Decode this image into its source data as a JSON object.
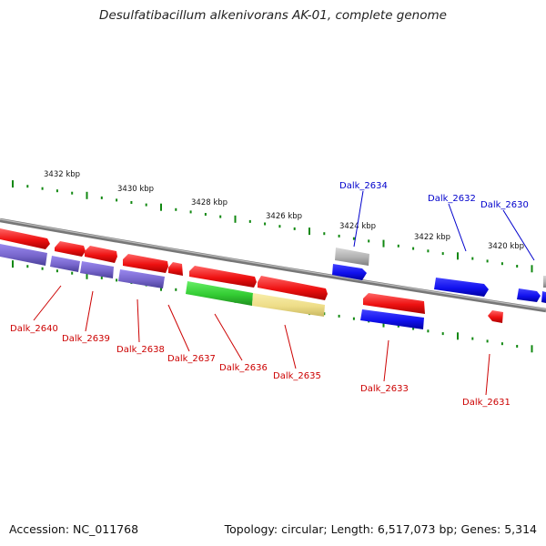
{
  "title": "Desulfatibacillum alkenivorans AK-01, complete genome",
  "footer": {
    "accession": "Accession: NC_011768",
    "summary": "Topology: circular; Length: 6,517,073 bp; Genes: 5,314"
  },
  "colors": {
    "red": "#ee1111",
    "blue": "#1111ee",
    "purple": "#7766cc",
    "green": "#33cc33",
    "yellow": "#eedd88",
    "gray": "#b0b0b0",
    "backbone": "#888888",
    "tick": "#118811",
    "label_red": "#cc0000",
    "label_blue": "#0000cc"
  },
  "scale_labels": [
    "3432 kbp",
    "3430 kbp",
    "3428 kbp",
    "3426 kbp",
    "3424 kbp",
    "3422 kbp",
    "3420 kbp"
  ],
  "gene_labels": [
    {
      "name": "Dalk_2640",
      "color": "red"
    },
    {
      "name": "Dalk_2639",
      "color": "red"
    },
    {
      "name": "Dalk_2638",
      "color": "red"
    },
    {
      "name": "Dalk_2637",
      "color": "red"
    },
    {
      "name": "Dalk_2636",
      "color": "red"
    },
    {
      "name": "Dalk_2635",
      "color": "red"
    },
    {
      "name": "Dalk_2634",
      "color": "blue"
    },
    {
      "name": "Dalk_2633",
      "color": "red"
    },
    {
      "name": "Dalk_2632",
      "color": "blue"
    },
    {
      "name": "Dalk_2631",
      "color": "red"
    },
    {
      "name": "Dalk_2630",
      "color": "blue"
    }
  ]
}
